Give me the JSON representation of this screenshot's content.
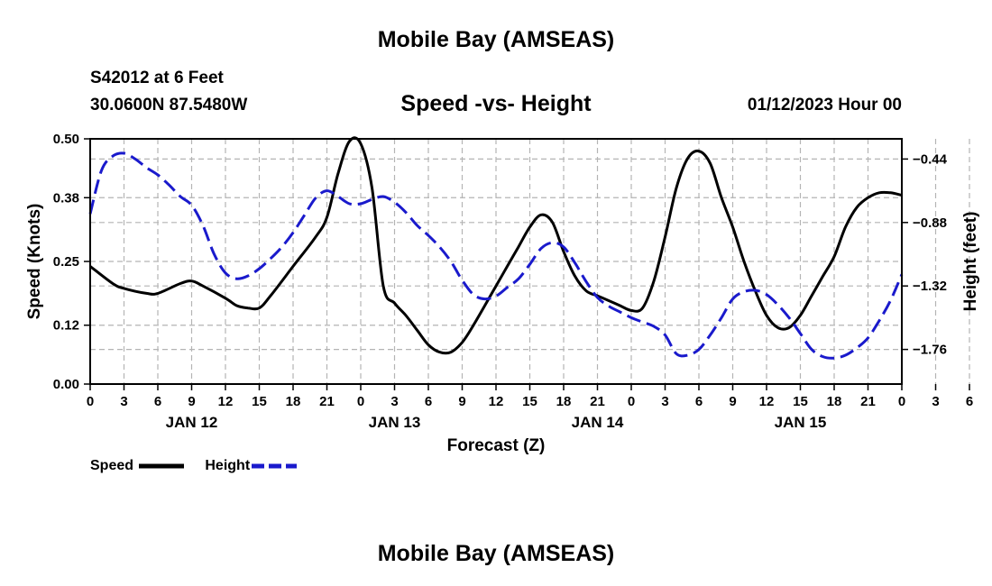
{
  "header": {
    "title": "Mobile Bay (AMSEAS)",
    "station": "S42012 at 6 Feet",
    "coordinates": "30.0600N  87.5480W",
    "subtitle": "Speed -vs- Height",
    "run_time": "01/12/2023 Hour 00"
  },
  "footer": {
    "title": "Mobile Bay (AMSEAS)"
  },
  "legend": {
    "speed_label": "Speed",
    "height_label": "Height"
  },
  "colors": {
    "speed": "#000000",
    "height": "#1a1acc",
    "grid": "#b4b4b4"
  },
  "chart_data": {
    "type": "line",
    "title": "Speed -vs- Height",
    "xlabel": "Forecast (Z)",
    "ylabel_left": "Speed (Knots)",
    "ylabel_right": "Height (feet)",
    "xlim": [
      0,
      72
    ],
    "ylim_left": [
      0.0,
      0.5
    ],
    "ylim_right": [
      -2.0,
      -0.3
    ],
    "y_left_ticks": [
      "0.00",
      "0.12",
      "0.25",
      "0.38",
      "0.50"
    ],
    "y_right_ticks": [
      -1.76,
      -1.32,
      -0.88,
      -0.44
    ],
    "y_right_tick_labels": [
      "−1.76",
      "−1.32",
      "−0.88",
      "−0.44"
    ],
    "x_tick_labels": [
      "0",
      "3",
      "6",
      "9",
      "12",
      "15",
      "18",
      "21",
      "0",
      "3",
      "6",
      "9",
      "12",
      "15",
      "18",
      "21",
      "0",
      "3",
      "6",
      "9",
      "12",
      "15",
      "18",
      "21",
      "0",
      "3",
      "6",
      "9",
      "12",
      "15",
      "18",
      "21",
      "0"
    ],
    "day_labels": [
      {
        "label": "JAN 12",
        "hour": 9
      },
      {
        "label": "JAN 13",
        "hour": 27
      },
      {
        "label": "JAN 14",
        "hour": 45
      },
      {
        "label": "JAN 15",
        "hour": 63
      }
    ],
    "series": [
      {
        "name": "Speed",
        "axis": "left",
        "x": [
          0,
          2,
          3,
          5,
          6,
          8,
          9,
          10,
          12,
          13,
          14,
          15,
          16,
          18,
          20,
          21,
          22,
          23,
          24,
          25,
          26,
          27,
          28,
          29,
          30,
          31,
          32,
          33,
          34,
          36,
          37,
          38,
          39,
          40,
          41,
          42,
          43,
          44,
          45,
          46,
          47,
          48,
          49,
          50,
          51,
          52,
          53,
          54,
          55,
          56,
          57,
          58,
          59,
          60,
          61,
          62,
          63,
          64,
          65,
          66,
          67,
          68,
          69,
          70,
          71,
          72
        ],
        "values": [
          0.24,
          0.205,
          0.195,
          0.185,
          0.185,
          0.205,
          0.21,
          0.2,
          0.175,
          0.16,
          0.155,
          0.155,
          0.18,
          0.24,
          0.3,
          0.34,
          0.43,
          0.495,
          0.49,
          0.4,
          0.2,
          0.165,
          0.14,
          0.11,
          0.08,
          0.065,
          0.065,
          0.085,
          0.12,
          0.2,
          0.24,
          0.28,
          0.32,
          0.345,
          0.33,
          0.27,
          0.22,
          0.19,
          0.18,
          0.17,
          0.16,
          0.15,
          0.155,
          0.21,
          0.3,
          0.4,
          0.46,
          0.475,
          0.45,
          0.38,
          0.32,
          0.25,
          0.19,
          0.14,
          0.115,
          0.115,
          0.14,
          0.18,
          0.22,
          0.26,
          0.32,
          0.36,
          0.38,
          0.39,
          0.39,
          0.385
        ]
      },
      {
        "name": "Height",
        "axis": "right",
        "x": [
          0,
          1,
          2,
          3,
          4,
          5,
          6,
          7,
          8,
          9,
          10,
          11,
          12,
          13,
          14,
          15,
          16,
          17,
          18,
          19,
          20,
          21,
          22,
          23,
          24,
          25,
          26,
          27,
          28,
          29,
          30,
          31,
          32,
          33,
          34,
          35,
          36,
          37,
          38,
          39,
          40,
          41,
          42,
          43,
          44,
          45,
          46,
          47,
          48,
          49,
          50,
          51,
          52,
          53,
          54,
          55,
          56,
          57,
          58,
          59,
          60,
          61,
          62,
          63,
          64,
          65,
          66,
          67,
          68,
          69,
          70,
          71,
          72
        ],
        "values": [
          -0.82,
          -0.52,
          -0.42,
          -0.4,
          -0.44,
          -0.5,
          -0.55,
          -0.62,
          -0.7,
          -0.76,
          -0.9,
          -1.1,
          -1.23,
          -1.27,
          -1.25,
          -1.2,
          -1.13,
          -1.05,
          -0.95,
          -0.83,
          -0.71,
          -0.66,
          -0.7,
          -0.75,
          -0.75,
          -0.72,
          -0.7,
          -0.74,
          -0.81,
          -0.9,
          -0.97,
          -1.05,
          -1.15,
          -1.28,
          -1.38,
          -1.41,
          -1.39,
          -1.33,
          -1.27,
          -1.17,
          -1.06,
          -1.02,
          -1.05,
          -1.16,
          -1.29,
          -1.4,
          -1.46,
          -1.5,
          -1.54,
          -1.57,
          -1.6,
          -1.66,
          -1.79,
          -1.8,
          -1.76,
          -1.66,
          -1.54,
          -1.41,
          -1.36,
          -1.35,
          -1.38,
          -1.45,
          -1.54,
          -1.65,
          -1.76,
          -1.81,
          -1.82,
          -1.8,
          -1.75,
          -1.68,
          -1.56,
          -1.42,
          -1.24
        ]
      }
    ]
  }
}
